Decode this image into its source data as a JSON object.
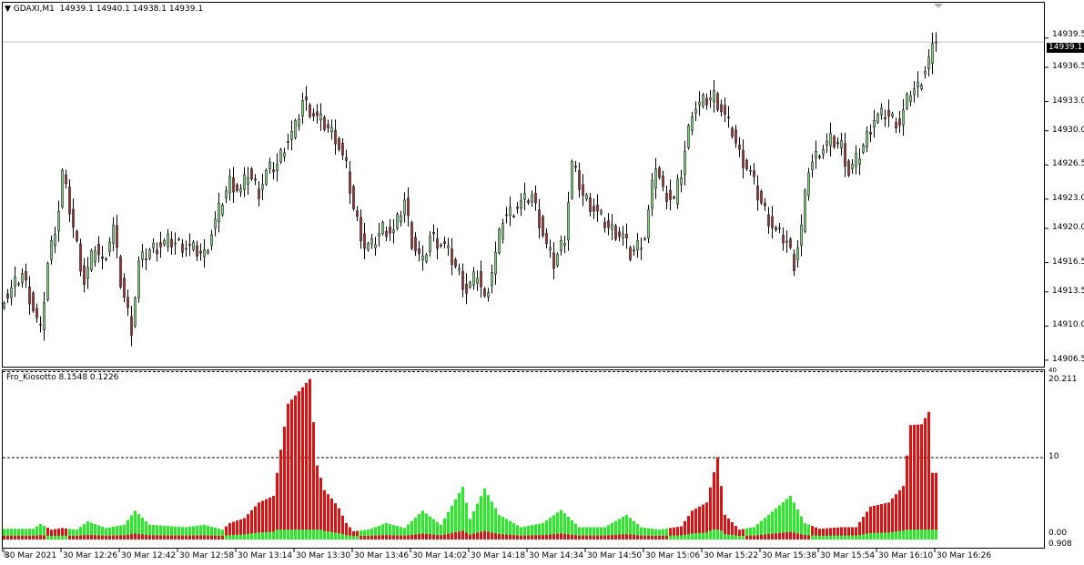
{
  "window": {
    "symbol_label": "GDAXI,M1",
    "ohlc_label": "14939.1 14940.1 14938.1 14939.1"
  },
  "price_axis": {
    "ticks": [
      "14939.5",
      "14936.5",
      "14933.0",
      "14930.0",
      "14926.5",
      "14923.0",
      "14920.0",
      "14916.5",
      "14913.5",
      "14910.0",
      "14906.5"
    ],
    "tick_values": [
      14939.5,
      14936.5,
      14933.0,
      14930.0,
      14926.5,
      14923.0,
      14920.0,
      14916.5,
      14913.5,
      14910.0,
      14906.5
    ],
    "current_price": "14939.1",
    "current_price_value": 14939.1
  },
  "indicator": {
    "title": "Fro_Kiosotto 8.1548 0.1226",
    "axis_max_label": "20.211",
    "axis_max_value": 20.211,
    "axis_top_label": "40",
    "level_label": "10",
    "level_value": 10,
    "axis_min_label": "0.00",
    "axis_min_label2": "0.908",
    "colors": {
      "bull": "#22ee22",
      "bear": "#e01010"
    },
    "keypoints": [
      [
        0,
        1.3,
        "g"
      ],
      [
        8,
        1.3,
        "g"
      ],
      [
        10,
        1.9,
        "g"
      ],
      [
        13,
        1.2,
        "r"
      ],
      [
        16,
        1.4,
        "r"
      ],
      [
        20,
        1.2,
        "g"
      ],
      [
        23,
        2.2,
        "g"
      ],
      [
        28,
        1.4,
        "g"
      ],
      [
        33,
        1.8,
        "g"
      ],
      [
        36,
        3.5,
        "g"
      ],
      [
        40,
        1.8,
        "g"
      ],
      [
        50,
        1.5,
        "g"
      ],
      [
        55,
        1.8,
        "g"
      ],
      [
        60,
        1.2,
        "g"
      ],
      [
        62,
        2.0,
        "r"
      ],
      [
        66,
        2.6,
        "r"
      ],
      [
        70,
        4.5,
        "r"
      ],
      [
        74,
        5.3,
        "r"
      ],
      [
        78,
        16.5,
        "r"
      ],
      [
        82,
        18.5,
        "r"
      ],
      [
        84,
        19.5,
        "r"
      ],
      [
        86,
        9.0,
        "r"
      ],
      [
        88,
        6.0,
        "r"
      ],
      [
        90,
        5.0,
        "r"
      ],
      [
        92,
        3.8,
        "r"
      ],
      [
        94,
        2.0,
        "r"
      ],
      [
        96,
        1.0,
        "r"
      ],
      [
        100,
        1.2,
        "g"
      ],
      [
        105,
        2.0,
        "g"
      ],
      [
        110,
        1.4,
        "g"
      ],
      [
        115,
        3.5,
        "g"
      ],
      [
        120,
        1.8,
        "g"
      ],
      [
        126,
        6.4,
        "g"
      ],
      [
        128,
        2.5,
        "g"
      ],
      [
        132,
        6.2,
        "g"
      ],
      [
        136,
        3.0,
        "g"
      ],
      [
        142,
        1.5,
        "g"
      ],
      [
        148,
        2.0,
        "g"
      ],
      [
        153,
        3.6,
        "g"
      ],
      [
        158,
        1.5,
        "g"
      ],
      [
        165,
        1.5,
        "g"
      ],
      [
        171,
        3.0,
        "g"
      ],
      [
        175,
        1.5,
        "g"
      ],
      [
        180,
        1.2,
        "g"
      ],
      [
        186,
        1.6,
        "r"
      ],
      [
        189,
        3.5,
        "r"
      ],
      [
        193,
        4.5,
        "r"
      ],
      [
        196,
        10.0,
        "r"
      ],
      [
        198,
        3.0,
        "r"
      ],
      [
        202,
        1.2,
        "r"
      ],
      [
        206,
        1.5,
        "g"
      ],
      [
        210,
        3.0,
        "g"
      ],
      [
        216,
        5.3,
        "g"
      ],
      [
        220,
        2.0,
        "g"
      ],
      [
        224,
        1.3,
        "r"
      ],
      [
        230,
        1.5,
        "r"
      ],
      [
        234,
        1.5,
        "r"
      ],
      [
        238,
        4.0,
        "r"
      ],
      [
        243,
        4.5,
        "r"
      ],
      [
        247,
        6.5,
        "r"
      ],
      [
        249,
        13.9,
        "r"
      ],
      [
        252,
        14.0,
        "r"
      ],
      [
        254,
        15.5,
        "r"
      ],
      [
        255,
        8.1,
        "r"
      ],
      [
        257,
        8.1,
        "r"
      ]
    ]
  },
  "price_data": {
    "colors": {
      "bull": "#7fd67f",
      "bear": "#a52a2a",
      "outline": "#1a1a1a",
      "price_line": "#c0c0c0"
    },
    "last_bar": {
      "open": 14939.1,
      "high": 14940.1,
      "low": 14938.1,
      "close": 14939.1
    },
    "close_keypoints": [
      [
        0,
        14913.1
      ],
      [
        1,
        14913.1
      ],
      [
        5,
        14915.4
      ],
      [
        10,
        14909.4
      ],
      [
        12,
        14916.4
      ],
      [
        15,
        14922.0
      ],
      [
        16,
        14925.7
      ],
      [
        19,
        14920.1
      ],
      [
        22,
        14914.5
      ],
      [
        25,
        14918.2
      ],
      [
        27,
        14916.4
      ],
      [
        30,
        14920.1
      ],
      [
        32,
        14914.5
      ],
      [
        35,
        14909.8
      ],
      [
        37,
        14916.4
      ],
      [
        40,
        14917.8
      ],
      [
        45,
        14918.7
      ],
      [
        50,
        14918.2
      ],
      [
        55,
        14917.3
      ],
      [
        57,
        14919.6
      ],
      [
        60,
        14922.9
      ],
      [
        62,
        14924.8
      ],
      [
        65,
        14923.8
      ],
      [
        67,
        14925.7
      ],
      [
        70,
        14923.8
      ],
      [
        72,
        14925.7
      ],
      [
        75,
        14926.6
      ],
      [
        77,
        14928.5
      ],
      [
        80,
        14930.3
      ],
      [
        82,
        14933.1
      ],
      [
        86,
        14931.3
      ],
      [
        89,
        14930.3
      ],
      [
        91,
        14929.4
      ],
      [
        94,
        14926.2
      ],
      [
        96,
        14922.0
      ],
      [
        99,
        14918.2
      ],
      [
        101,
        14918.2
      ],
      [
        104,
        14920.1
      ],
      [
        107,
        14919.6
      ],
      [
        110,
        14922.9
      ],
      [
        112,
        14918.7
      ],
      [
        115,
        14916.4
      ],
      [
        117,
        14919.2
      ],
      [
        121,
        14918.2
      ],
      [
        125,
        14915.4
      ],
      [
        127,
        14913.6
      ],
      [
        130,
        14915.4
      ],
      [
        132,
        14912.6
      ],
      [
        135,
        14917.3
      ],
      [
        137,
        14921.0
      ],
      [
        140,
        14922.0
      ],
      [
        145,
        14923.4
      ],
      [
        149,
        14918.2
      ],
      [
        151,
        14916.4
      ],
      [
        154,
        14919.2
      ],
      [
        156,
        14926.6
      ],
      [
        159,
        14923.4
      ],
      [
        162,
        14922.0
      ],
      [
        166,
        14920.1
      ],
      [
        170,
        14919.2
      ],
      [
        172,
        14917.3
      ],
      [
        176,
        14919.2
      ],
      [
        179,
        14926.6
      ],
      [
        181,
        14923.8
      ],
      [
        184,
        14922.9
      ],
      [
        186,
        14925.7
      ],
      [
        189,
        14932.2
      ],
      [
        191,
        14932.7
      ],
      [
        195,
        14933.6
      ],
      [
        197,
        14932.2
      ],
      [
        200,
        14929.9
      ],
      [
        202,
        14927.6
      ],
      [
        205,
        14925.7
      ],
      [
        207,
        14923.4
      ],
      [
        210,
        14921.0
      ],
      [
        212,
        14919.6
      ],
      [
        215,
        14918.7
      ],
      [
        217,
        14916.4
      ],
      [
        219,
        14920.1
      ],
      [
        221,
        14926.2
      ],
      [
        224,
        14928.0
      ],
      [
        227,
        14929.0
      ],
      [
        230,
        14928.5
      ],
      [
        232,
        14925.7
      ],
      [
        235,
        14927.6
      ],
      [
        239,
        14931.3
      ],
      [
        242,
        14931.7
      ],
      [
        246,
        14930.8
      ],
      [
        249,
        14934.1
      ],
      [
        251,
        14934.5
      ],
      [
        254,
        14937.3
      ],
      [
        256,
        14939.1
      ]
    ]
  },
  "time_axis": {
    "labels": [
      "30 Mar 2021",
      "30 Mar 12:26",
      "30 Mar 12:42",
      "30 Mar 12:58",
      "30 Mar 13:14",
      "30 Mar 13:30",
      "30 Mar 13:46",
      "30 Mar 14:02",
      "30 Mar 14:18",
      "30 Mar 14:34",
      "30 Mar 14:50",
      "30 Mar 15:06",
      "30 Mar 15:22",
      "30 Mar 15:38",
      "30 Mar 15:54",
      "30 Mar 16:10",
      "30 Mar 16:26"
    ]
  }
}
